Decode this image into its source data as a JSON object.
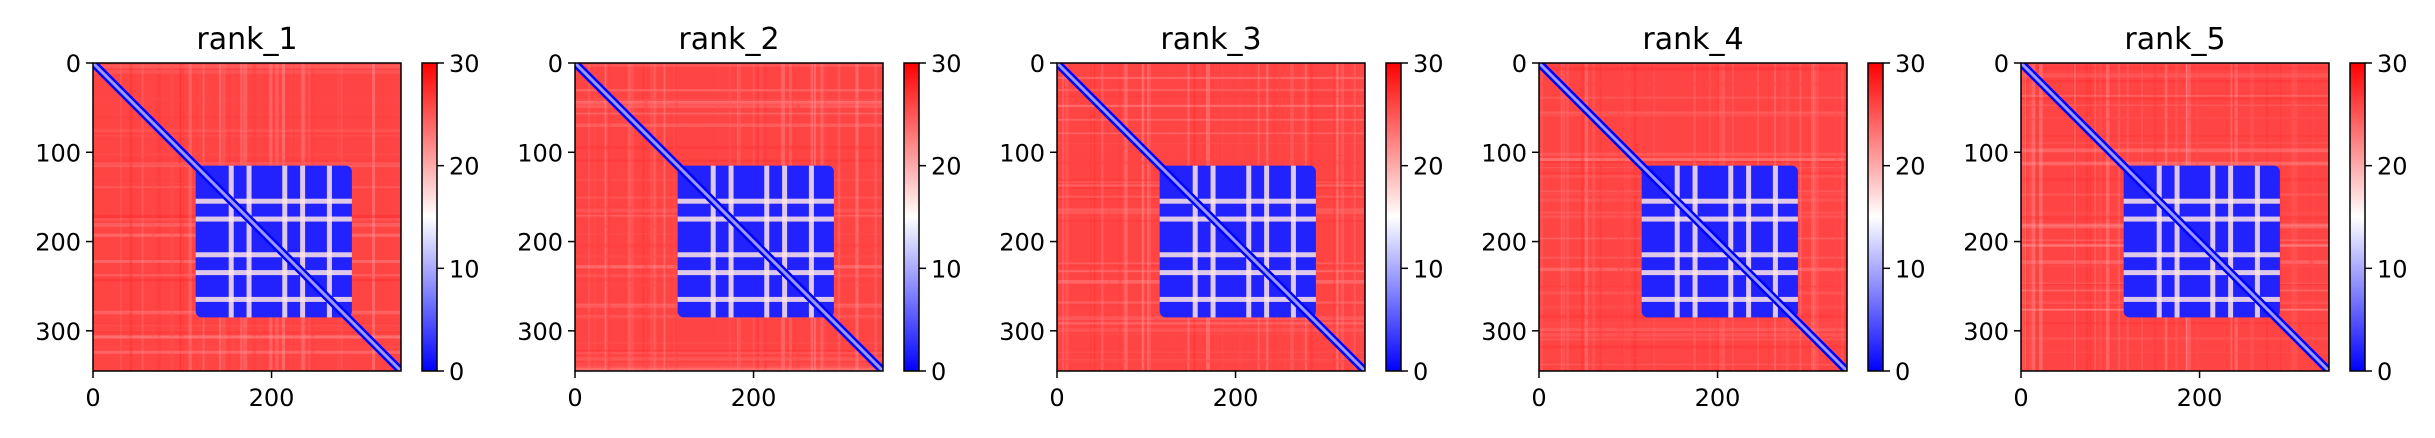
{
  "figure": {
    "colormap": [
      "#0000ff",
      "#ffffff",
      "#ff0000"
    ],
    "axis_color": "#000000"
  },
  "chart_data": [
    {
      "type": "heatmap",
      "title": "rank_1",
      "x_range": [
        0,
        345
      ],
      "y_range": [
        345,
        0
      ],
      "xticks": [
        0,
        200
      ],
      "yticks": [
        0,
        100,
        200,
        300
      ],
      "colorbar": {
        "range": [
          0,
          30
        ],
        "ticks": [
          0,
          10,
          20,
          30
        ]
      },
      "grid": false,
      "diagonal_band": 0,
      "blocks": [
        {
          "x0": 115,
          "x1": 290,
          "y0": 115,
          "y1": 285,
          "value": 2
        }
      ]
    },
    {
      "type": "heatmap",
      "title": "rank_2",
      "x_range": [
        0,
        345
      ],
      "y_range": [
        345,
        0
      ],
      "xticks": [
        0,
        200
      ],
      "yticks": [
        0,
        100,
        200,
        300
      ],
      "colorbar": {
        "range": [
          0,
          30
        ],
        "ticks": [
          0,
          10,
          20,
          30
        ]
      },
      "grid": false,
      "diagonal_band": 0,
      "blocks": [
        {
          "x0": 115,
          "x1": 290,
          "y0": 115,
          "y1": 285,
          "value": 2
        }
      ]
    },
    {
      "type": "heatmap",
      "title": "rank_3",
      "x_range": [
        0,
        345
      ],
      "y_range": [
        345,
        0
      ],
      "xticks": [
        0,
        200
      ],
      "yticks": [
        0,
        100,
        200,
        300
      ],
      "colorbar": {
        "range": [
          0,
          30
        ],
        "ticks": [
          0,
          10,
          20,
          30
        ]
      },
      "grid": false,
      "diagonal_band": 0,
      "blocks": [
        {
          "x0": 115,
          "x1": 290,
          "y0": 115,
          "y1": 285,
          "value": 2
        }
      ]
    },
    {
      "type": "heatmap",
      "title": "rank_4",
      "x_range": [
        0,
        345
      ],
      "y_range": [
        345,
        0
      ],
      "xticks": [
        0,
        200
      ],
      "yticks": [
        0,
        100,
        200,
        300
      ],
      "colorbar": {
        "range": [
          0,
          30
        ],
        "ticks": [
          0,
          10,
          20,
          30
        ]
      },
      "grid": false,
      "diagonal_band": 0,
      "blocks": [
        {
          "x0": 115,
          "x1": 290,
          "y0": 115,
          "y1": 285,
          "value": 2
        }
      ]
    },
    {
      "type": "heatmap",
      "title": "rank_5",
      "x_range": [
        0,
        345
      ],
      "y_range": [
        345,
        0
      ],
      "xticks": [
        0,
        200
      ],
      "yticks": [
        0,
        100,
        200,
        300
      ],
      "colorbar": {
        "range": [
          0,
          30
        ],
        "ticks": [
          0,
          10,
          20,
          30
        ]
      },
      "grid": false,
      "diagonal_band": 0,
      "blocks": [
        {
          "x0": 115,
          "x1": 290,
          "y0": 115,
          "y1": 285,
          "value": 2
        }
      ]
    }
  ]
}
